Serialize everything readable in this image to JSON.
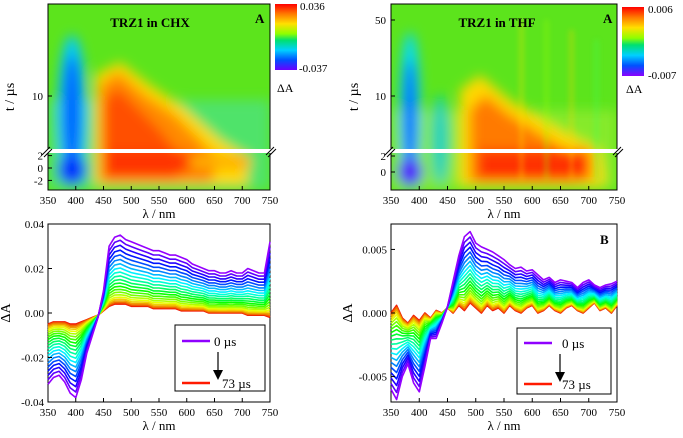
{
  "chart_data": [
    {
      "type": "heatmap",
      "panel": "top-left",
      "title": "TRZ1 in CHX",
      "panel_label": "A",
      "xlabel": "λ / nm",
      "ylabel": "t / µs",
      "x_ticks": [
        "350",
        "400",
        "450",
        "500",
        "550",
        "600",
        "650",
        "700",
        "750"
      ],
      "y_ticks_lower": [
        "-2",
        "0",
        "2"
      ],
      "y_ticks_upper": [
        "10"
      ],
      "xlim": [
        350,
        750
      ],
      "colorbar": {
        "max": "0.036",
        "min": "-0.037",
        "label": "ΔA"
      }
    },
    {
      "type": "heatmap",
      "panel": "top-right",
      "title": "TRZ1 in THF",
      "panel_label": "A",
      "xlabel": "λ / nm",
      "ylabel": "t / µs",
      "x_ticks": [
        "350",
        "400",
        "450",
        "500",
        "550",
        "600",
        "650",
        "700",
        "750"
      ],
      "y_ticks_lower": [
        "0",
        "2"
      ],
      "y_ticks_upper": [
        "10",
        "50"
      ],
      "xlim": [
        350,
        750
      ],
      "colorbar": {
        "max": "0.006",
        "min": "-0.007",
        "label": "ΔA"
      }
    },
    {
      "type": "line",
      "panel": "bottom-left",
      "panel_label": "",
      "xlabel": "λ / nm",
      "ylabel": "ΔA",
      "xlim": [
        350,
        750
      ],
      "ylim": [
        -0.04,
        0.04
      ],
      "x_ticks": [
        "350",
        "400",
        "450",
        "500",
        "550",
        "600",
        "650",
        "700",
        "750"
      ],
      "y_ticks": [
        "-0.04",
        "-0.02",
        "0.00",
        "0.02",
        "0.04"
      ],
      "legend": {
        "placement": "bottom-right",
        "entries": [
          "0 µs",
          "73 µs"
        ],
        "colors": [
          "#8f00ff",
          "#ff1a00"
        ]
      },
      "x": [
        350,
        360,
        370,
        380,
        390,
        400,
        410,
        420,
        430,
        440,
        450,
        460,
        470,
        480,
        490,
        500,
        510,
        520,
        530,
        540,
        550,
        560,
        570,
        580,
        590,
        600,
        610,
        620,
        630,
        640,
        650,
        660,
        670,
        680,
        690,
        700,
        710,
        720,
        730,
        740,
        750
      ],
      "first_trace_0us": [
        -0.032,
        -0.029,
        -0.028,
        -0.031,
        -0.036,
        -0.038,
        -0.03,
        -0.018,
        -0.01,
        -0.002,
        0.01,
        0.03,
        0.034,
        0.035,
        0.033,
        0.032,
        0.031,
        0.03,
        0.029,
        0.028,
        0.028,
        0.027,
        0.026,
        0.026,
        0.025,
        0.024,
        0.022,
        0.021,
        0.02,
        0.019,
        0.019,
        0.018,
        0.018,
        0.019,
        0.018,
        0.018,
        0.02,
        0.019,
        0.018,
        0.018,
        0.032
      ],
      "last_trace_73us": [
        -0.005,
        -0.004,
        -0.004,
        -0.004,
        -0.005,
        -0.005,
        -0.004,
        -0.003,
        -0.002,
        -0.001,
        0.001,
        0.003,
        0.004,
        0.004,
        0.004,
        0.003,
        0.003,
        0.003,
        0.003,
        0.002,
        0.002,
        0.002,
        0.002,
        0.002,
        0.001,
        0.001,
        0.001,
        0.001,
        0.001,
        0.0,
        0.0,
        0.0,
        0.0,
        0.0,
        0.0,
        0.0,
        -0.001,
        -0.001,
        -0.001,
        -0.001,
        -0.002
      ],
      "n_traces": 22
    },
    {
      "type": "line",
      "panel": "bottom-right",
      "panel_label": "B",
      "xlabel": "λ / nm",
      "ylabel": "ΔA",
      "xlim": [
        350,
        750
      ],
      "ylim": [
        -0.007,
        0.007
      ],
      "x_ticks": [
        "350",
        "400",
        "450",
        "500",
        "550",
        "600",
        "650",
        "700",
        "750"
      ],
      "y_ticks": [
        "-0.005",
        "0.000",
        "0.005"
      ],
      "legend": {
        "placement": "bottom-right",
        "entries": [
          "0 µs",
          "73 µs"
        ],
        "colors": [
          "#8f00ff",
          "#ff1a00"
        ]
      },
      "x": [
        350,
        360,
        370,
        380,
        390,
        400,
        410,
        420,
        430,
        440,
        450,
        460,
        470,
        480,
        490,
        500,
        510,
        520,
        530,
        540,
        550,
        560,
        570,
        580,
        590,
        600,
        610,
        620,
        630,
        640,
        650,
        660,
        670,
        680,
        690,
        700,
        710,
        720,
        730,
        740,
        750
      ],
      "first_trace_0us": [
        -0.006,
        -0.0068,
        -0.005,
        -0.004,
        -0.0055,
        -0.0062,
        -0.0042,
        -0.002,
        -0.002,
        -0.0008,
        0.0005,
        0.0025,
        0.0045,
        0.006,
        0.0064,
        0.0055,
        0.0052,
        0.005,
        0.0048,
        0.0045,
        0.0042,
        0.0038,
        0.0035,
        0.0036,
        0.0033,
        0.0034,
        0.003,
        0.0026,
        0.0028,
        0.0024,
        0.0026,
        0.0025,
        0.0024,
        0.002,
        0.0024,
        0.0026,
        0.0022,
        0.002,
        0.0022,
        0.0023,
        0.0025
      ],
      "last_trace_73us": [
        0.0,
        0.0006,
        -0.0004,
        -0.0008,
        -0.0002,
        -0.0006,
        0.0,
        -0.0004,
        0.0002,
        0.0,
        0.0004,
        0.0,
        0.0006,
        0.0002,
        0.0008,
        0.0004,
        0.0,
        0.0006,
        0.0002,
        0.0004,
        0.0,
        0.0006,
        0.0002,
        0.0,
        0.0004,
        0.0006,
        0.0,
        0.0002,
        0.0006,
        0.0002,
        0.0,
        0.0004,
        0.0006,
        0.0002,
        0.0,
        0.0004,
        0.0008,
        0.0002,
        0.0004,
        0.0,
        0.0006
      ],
      "n_traces": 22
    }
  ]
}
